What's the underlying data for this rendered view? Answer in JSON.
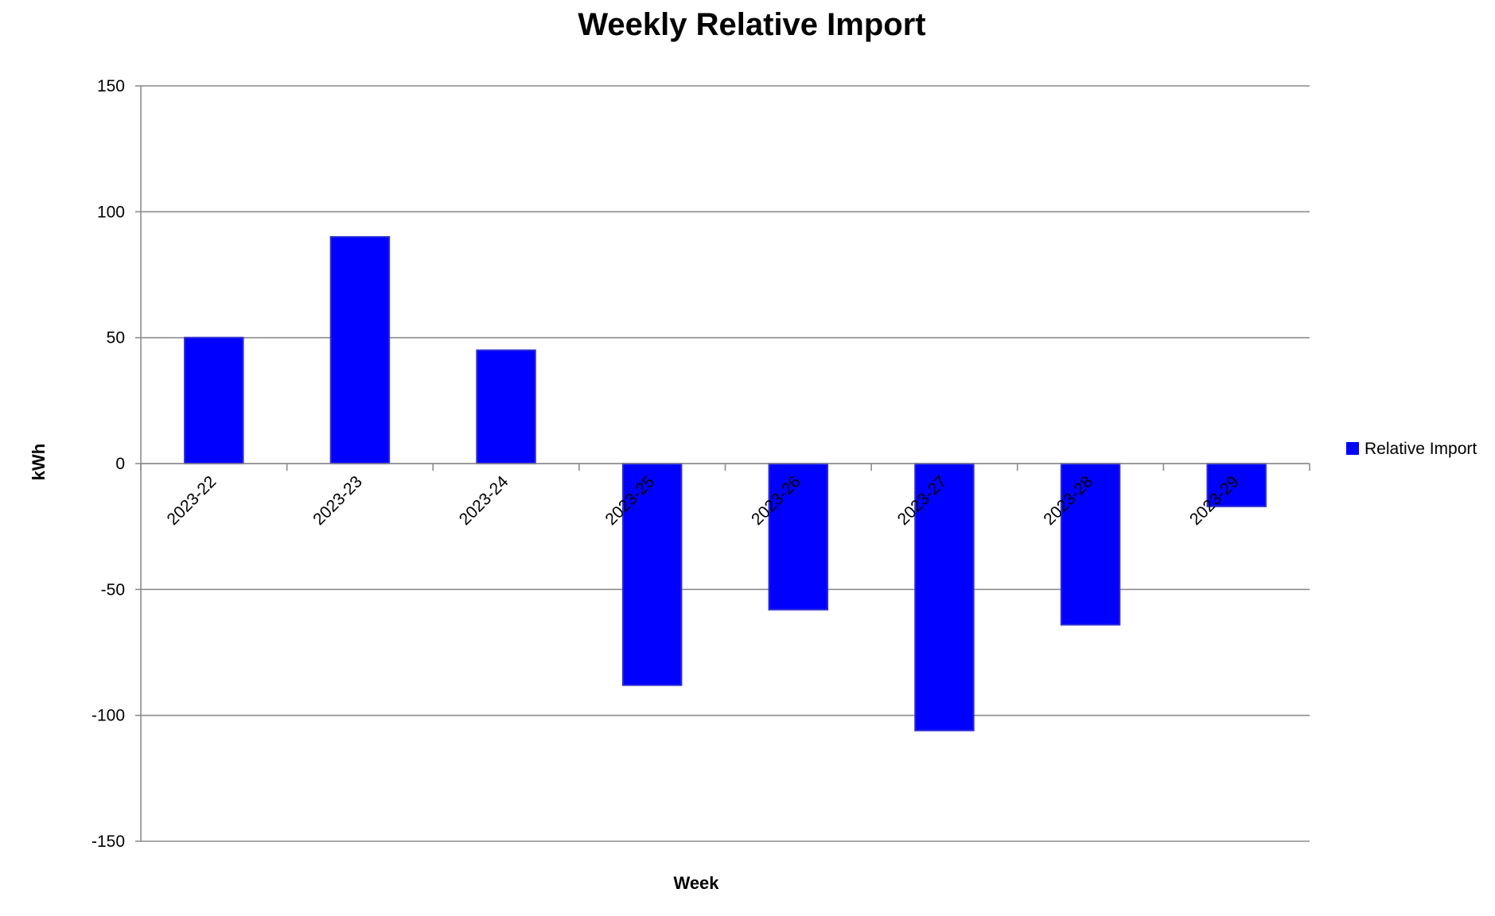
{
  "chart_data": {
    "type": "bar",
    "title": "Weekly Relative Import",
    "xlabel": "Week",
    "ylabel": "kWh",
    "categories": [
      "2023-22",
      "2023-23",
      "2023-24",
      "2023-25",
      "2023-26",
      "2023-27",
      "2023-28",
      "2023-29"
    ],
    "series": [
      {
        "name": "Relative Import",
        "color": "#0000ff",
        "values": [
          50,
          90,
          45,
          -88,
          -58,
          -106,
          -64,
          -17
        ]
      }
    ],
    "ylim": [
      -150,
      150
    ],
    "yticks": [
      150,
      100,
      50,
      0,
      -50,
      -100,
      -150
    ],
    "ytick_labels": [
      "150",
      "100",
      "50",
      "0",
      "-50",
      "-100",
      "-150"
    ],
    "grid": true,
    "legend_position": "right"
  }
}
